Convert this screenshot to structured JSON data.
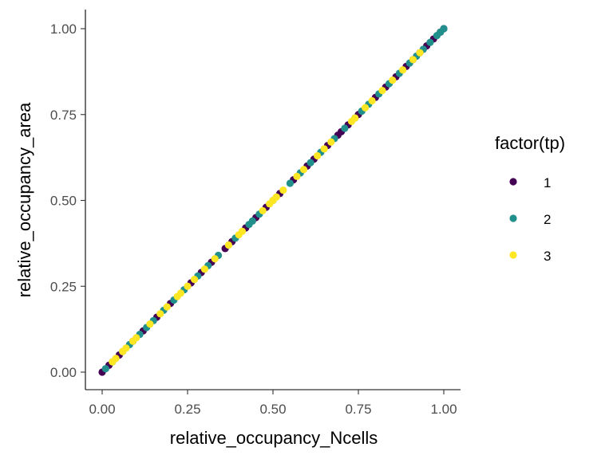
{
  "chart_data": {
    "type": "scatter",
    "xlabel": "relative_occupancy_Ncells",
    "ylabel": "relative_occupancy_area",
    "xlim": [
      0,
      1
    ],
    "ylim": [
      0,
      1
    ],
    "x_ticks": [
      "0.00",
      "0.25",
      "0.50",
      "0.75",
      "1.00"
    ],
    "y_ticks": [
      "0.00",
      "0.25",
      "0.50",
      "0.75",
      "1.00"
    ],
    "x_tick_values": [
      0,
      0.25,
      0.5,
      0.75,
      1
    ],
    "y_tick_values": [
      0,
      0.25,
      0.5,
      0.75,
      1
    ],
    "grid": false,
    "legend": {
      "title": "factor(tp)",
      "placement": "right",
      "entries": [
        {
          "label": "1",
          "color": "#440154"
        },
        {
          "label": "2",
          "color": "#21908C"
        },
        {
          "label": "3",
          "color": "#FDE725"
        }
      ]
    },
    "series": [
      {
        "name": "1",
        "color": "#440154",
        "points": [
          [
            0.0,
            0.0
          ],
          [
            0.02,
            0.02
          ],
          [
            0.05,
            0.05
          ],
          [
            0.09,
            0.09
          ],
          [
            0.12,
            0.12
          ],
          [
            0.16,
            0.16
          ],
          [
            0.2,
            0.2
          ],
          [
            0.26,
            0.26
          ],
          [
            0.29,
            0.29
          ],
          [
            0.32,
            0.32
          ],
          [
            0.36,
            0.36
          ],
          [
            0.38,
            0.38
          ],
          [
            0.42,
            0.42
          ],
          [
            0.45,
            0.45
          ],
          [
            0.48,
            0.48
          ],
          [
            0.52,
            0.52
          ],
          [
            0.56,
            0.56
          ],
          [
            0.6,
            0.6
          ],
          [
            0.62,
            0.62
          ],
          [
            0.66,
            0.66
          ],
          [
            0.69,
            0.69
          ],
          [
            0.7,
            0.7
          ],
          [
            0.72,
            0.72
          ],
          [
            0.75,
            0.75
          ],
          [
            0.8,
            0.8
          ],
          [
            0.83,
            0.83
          ],
          [
            0.86,
            0.86
          ],
          [
            0.89,
            0.89
          ],
          [
            0.91,
            0.91
          ],
          [
            0.93,
            0.93
          ],
          [
            0.95,
            0.95
          ],
          [
            0.97,
            0.97
          ],
          [
            0.99,
            0.99
          ],
          [
            1.0,
            1.0
          ]
        ]
      },
      {
        "name": "2",
        "color": "#21908C",
        "points": [
          [
            0.01,
            0.01
          ],
          [
            0.03,
            0.03
          ],
          [
            0.06,
            0.06
          ],
          [
            0.08,
            0.08
          ],
          [
            0.11,
            0.11
          ],
          [
            0.13,
            0.13
          ],
          [
            0.15,
            0.15
          ],
          [
            0.18,
            0.18
          ],
          [
            0.21,
            0.21
          ],
          [
            0.24,
            0.24
          ],
          [
            0.28,
            0.28
          ],
          [
            0.31,
            0.31
          ],
          [
            0.34,
            0.34
          ],
          [
            0.39,
            0.39
          ],
          [
            0.43,
            0.43
          ],
          [
            0.44,
            0.44
          ],
          [
            0.46,
            0.46
          ],
          [
            0.5,
            0.5
          ],
          [
            0.55,
            0.55
          ],
          [
            0.58,
            0.58
          ],
          [
            0.61,
            0.61
          ],
          [
            0.64,
            0.64
          ],
          [
            0.68,
            0.68
          ],
          [
            0.71,
            0.71
          ],
          [
            0.74,
            0.74
          ],
          [
            0.76,
            0.76
          ],
          [
            0.78,
            0.78
          ],
          [
            0.81,
            0.81
          ],
          [
            0.84,
            0.84
          ],
          [
            0.87,
            0.87
          ],
          [
            0.9,
            0.9
          ],
          [
            0.92,
            0.92
          ],
          [
            0.94,
            0.94
          ],
          [
            0.96,
            0.96
          ],
          [
            0.98,
            0.98
          ],
          [
            0.99,
            0.99
          ],
          [
            1.0,
            1.0
          ]
        ]
      },
      {
        "name": "3",
        "color": "#FDE725",
        "points": [
          [
            0.03,
            0.03
          ],
          [
            0.04,
            0.04
          ],
          [
            0.06,
            0.06
          ],
          [
            0.07,
            0.07
          ],
          [
            0.09,
            0.09
          ],
          [
            0.1,
            0.1
          ],
          [
            0.14,
            0.14
          ],
          [
            0.17,
            0.17
          ],
          [
            0.19,
            0.19
          ],
          [
            0.22,
            0.22
          ],
          [
            0.23,
            0.23
          ],
          [
            0.25,
            0.25
          ],
          [
            0.27,
            0.27
          ],
          [
            0.3,
            0.3
          ],
          [
            0.33,
            0.33
          ],
          [
            0.37,
            0.37
          ],
          [
            0.4,
            0.4
          ],
          [
            0.41,
            0.41
          ],
          [
            0.47,
            0.47
          ],
          [
            0.49,
            0.49
          ],
          [
            0.5,
            0.5
          ],
          [
            0.51,
            0.51
          ],
          [
            0.53,
            0.53
          ],
          [
            0.57,
            0.57
          ],
          [
            0.59,
            0.59
          ],
          [
            0.63,
            0.63
          ],
          [
            0.65,
            0.65
          ],
          [
            0.67,
            0.67
          ],
          [
            0.73,
            0.73
          ],
          [
            0.74,
            0.74
          ],
          [
            0.77,
            0.77
          ],
          [
            0.79,
            0.79
          ],
          [
            0.82,
            0.82
          ],
          [
            0.85,
            0.85
          ],
          [
            0.88,
            0.88
          ],
          [
            0.91,
            0.91
          ],
          [
            0.93,
            0.93
          ]
        ]
      }
    ]
  }
}
